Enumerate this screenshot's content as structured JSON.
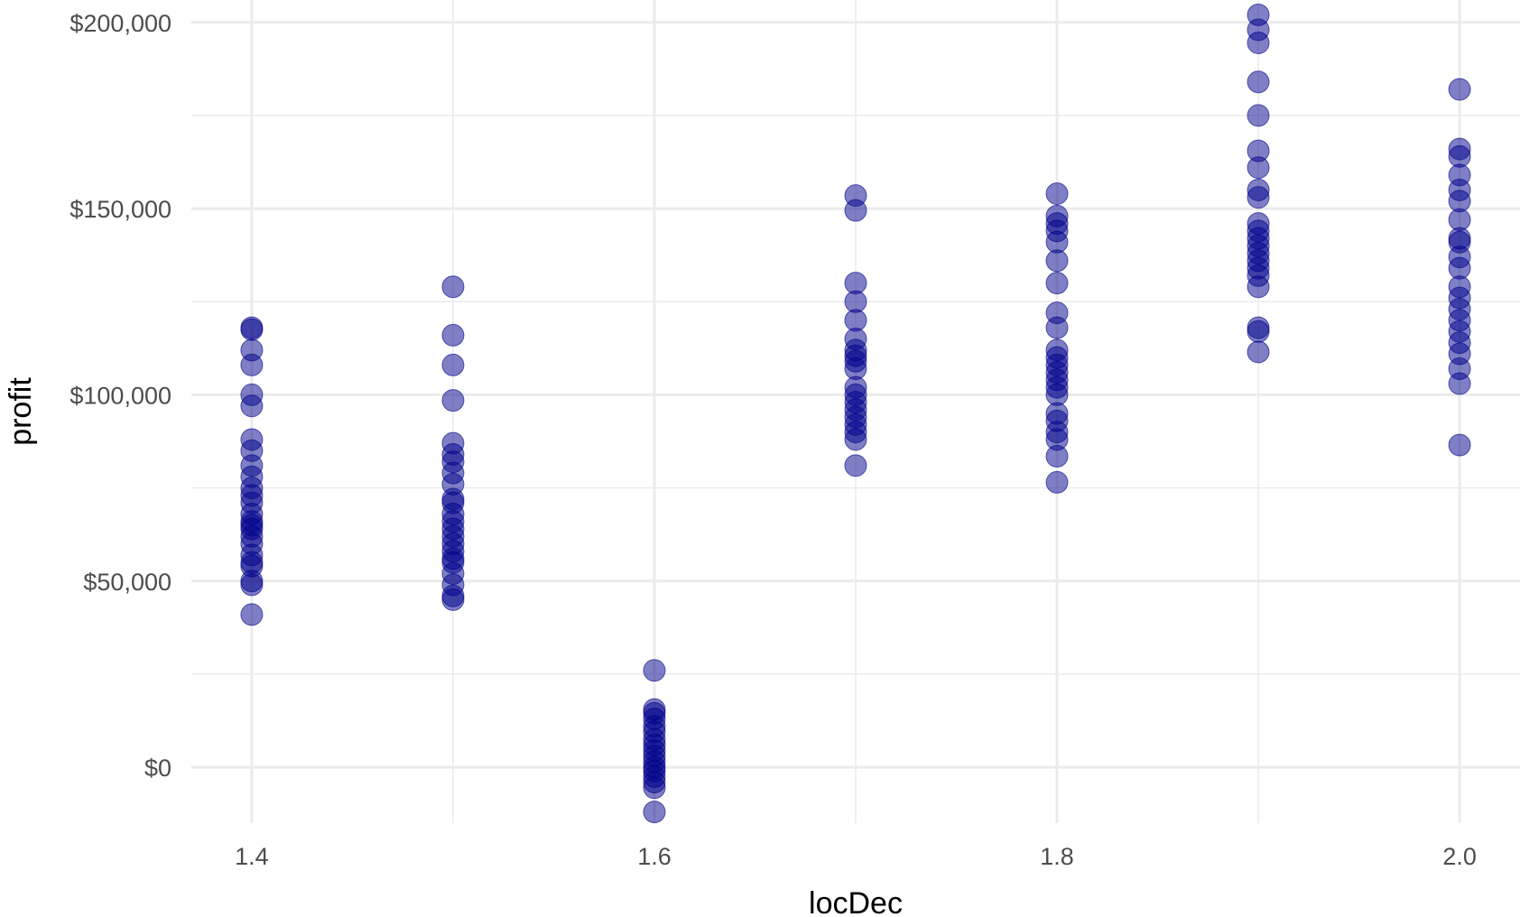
{
  "chart_data": {
    "type": "scatter",
    "xlabel": "locDec",
    "ylabel": "profit",
    "xlim": [
      1.37,
      2.03
    ],
    "ylim": [
      -15000,
      206000
    ],
    "x_ticks": [
      1.4,
      1.6,
      1.8,
      2.0
    ],
    "x_tick_labels": [
      "1.4",
      "1.6",
      "1.8",
      "2.0"
    ],
    "y_ticks": [
      0,
      50000,
      100000,
      150000,
      200000
    ],
    "y_tick_labels": [
      "$0",
      "$50,000",
      "$100,000",
      "$150,000",
      "$200,000"
    ],
    "grid": true,
    "point_color": "#00008b",
    "series": [
      {
        "points": [
          [
            1.4,
            118000
          ],
          [
            1.4,
            117500
          ],
          [
            1.4,
            112000
          ],
          [
            1.4,
            108000
          ],
          [
            1.4,
            100000
          ],
          [
            1.4,
            97000
          ],
          [
            1.4,
            88000
          ],
          [
            1.4,
            85000
          ],
          [
            1.4,
            81000
          ],
          [
            1.4,
            78000
          ],
          [
            1.4,
            75000
          ],
          [
            1.4,
            73000
          ],
          [
            1.4,
            71000
          ],
          [
            1.4,
            68000
          ],
          [
            1.4,
            66000
          ],
          [
            1.4,
            65000
          ],
          [
            1.4,
            64000
          ],
          [
            1.4,
            62000
          ],
          [
            1.4,
            60000
          ],
          [
            1.4,
            57000
          ],
          [
            1.4,
            55000
          ],
          [
            1.4,
            54000
          ],
          [
            1.4,
            50000
          ],
          [
            1.4,
            49000
          ],
          [
            1.4,
            41000
          ],
          [
            1.5,
            129000
          ],
          [
            1.5,
            116000
          ],
          [
            1.5,
            108000
          ],
          [
            1.5,
            98500
          ],
          [
            1.5,
            87000
          ],
          [
            1.5,
            84000
          ],
          [
            1.5,
            82000
          ],
          [
            1.5,
            79000
          ],
          [
            1.5,
            76000
          ],
          [
            1.5,
            72000
          ],
          [
            1.5,
            71000
          ],
          [
            1.5,
            68000
          ],
          [
            1.5,
            66000
          ],
          [
            1.5,
            64000
          ],
          [
            1.5,
            62000
          ],
          [
            1.5,
            60000
          ],
          [
            1.5,
            58000
          ],
          [
            1.5,
            56000
          ],
          [
            1.5,
            55000
          ],
          [
            1.5,
            52000
          ],
          [
            1.5,
            49000
          ],
          [
            1.5,
            46000
          ],
          [
            1.5,
            45000
          ],
          [
            1.6,
            26000
          ],
          [
            1.6,
            15500
          ],
          [
            1.6,
            14500
          ],
          [
            1.6,
            13000
          ],
          [
            1.6,
            11000
          ],
          [
            1.6,
            9500
          ],
          [
            1.6,
            7500
          ],
          [
            1.6,
            6000
          ],
          [
            1.6,
            4500
          ],
          [
            1.6,
            3000
          ],
          [
            1.6,
            1500
          ],
          [
            1.6,
            0
          ],
          [
            1.6,
            -1000
          ],
          [
            1.6,
            -2500
          ],
          [
            1.6,
            -4000
          ],
          [
            1.6,
            -5500
          ],
          [
            1.6,
            -12000
          ],
          [
            1.7,
            153500
          ],
          [
            1.7,
            149500
          ],
          [
            1.7,
            130000
          ],
          [
            1.7,
            125000
          ],
          [
            1.7,
            120000
          ],
          [
            1.7,
            115000
          ],
          [
            1.7,
            112000
          ],
          [
            1.7,
            110500
          ],
          [
            1.7,
            109000
          ],
          [
            1.7,
            107000
          ],
          [
            1.7,
            102000
          ],
          [
            1.7,
            100000
          ],
          [
            1.7,
            98000
          ],
          [
            1.7,
            96000
          ],
          [
            1.7,
            94000
          ],
          [
            1.7,
            92000
          ],
          [
            1.7,
            90000
          ],
          [
            1.7,
            88000
          ],
          [
            1.7,
            81000
          ],
          [
            1.8,
            154000
          ],
          [
            1.8,
            148000
          ],
          [
            1.8,
            146000
          ],
          [
            1.8,
            144000
          ],
          [
            1.8,
            141000
          ],
          [
            1.8,
            136000
          ],
          [
            1.8,
            130000
          ],
          [
            1.8,
            122000
          ],
          [
            1.8,
            118000
          ],
          [
            1.8,
            112000
          ],
          [
            1.8,
            110000
          ],
          [
            1.8,
            108000
          ],
          [
            1.8,
            106000
          ],
          [
            1.8,
            104000
          ],
          [
            1.8,
            102000
          ],
          [
            1.8,
            100000
          ],
          [
            1.8,
            95000
          ],
          [
            1.8,
            93000
          ],
          [
            1.8,
            90000
          ],
          [
            1.8,
            88000
          ],
          [
            1.8,
            83500
          ],
          [
            1.8,
            76500
          ],
          [
            1.9,
            202000
          ],
          [
            1.9,
            198000
          ],
          [
            1.9,
            194500
          ],
          [
            1.9,
            184000
          ],
          [
            1.9,
            175000
          ],
          [
            1.9,
            165500
          ],
          [
            1.9,
            161000
          ],
          [
            1.9,
            155000
          ],
          [
            1.9,
            153000
          ],
          [
            1.9,
            146000
          ],
          [
            1.9,
            144000
          ],
          [
            1.9,
            142000
          ],
          [
            1.9,
            140000
          ],
          [
            1.9,
            138000
          ],
          [
            1.9,
            136000
          ],
          [
            1.9,
            134000
          ],
          [
            1.9,
            132000
          ],
          [
            1.9,
            129000
          ],
          [
            1.9,
            118000
          ],
          [
            1.9,
            117000
          ],
          [
            1.9,
            111500
          ],
          [
            2.0,
            182000
          ],
          [
            2.0,
            166000
          ],
          [
            2.0,
            164000
          ],
          [
            2.0,
            159000
          ],
          [
            2.0,
            155000
          ],
          [
            2.0,
            152000
          ],
          [
            2.0,
            147000
          ],
          [
            2.0,
            142000
          ],
          [
            2.0,
            141000
          ],
          [
            2.0,
            137000
          ],
          [
            2.0,
            134000
          ],
          [
            2.0,
            129000
          ],
          [
            2.0,
            126000
          ],
          [
            2.0,
            123000
          ],
          [
            2.0,
            120000
          ],
          [
            2.0,
            117000
          ],
          [
            2.0,
            114000
          ],
          [
            2.0,
            111000
          ],
          [
            2.0,
            107000
          ],
          [
            2.0,
            103000
          ],
          [
            2.0,
            86500
          ]
        ]
      }
    ]
  }
}
